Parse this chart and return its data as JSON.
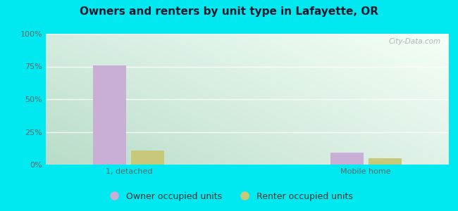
{
  "title": "Owners and renters by unit type in Lafayette, OR",
  "categories": [
    "1, detached",
    "Mobile home"
  ],
  "owner_values": [
    76,
    9
  ],
  "renter_values": [
    11,
    5
  ],
  "owner_color": "#c9aed6",
  "renter_color": "#c8c87a",
  "bar_width": 0.28,
  "ylim": [
    0,
    100
  ],
  "yticks": [
    0,
    25,
    50,
    75,
    100
  ],
  "ytick_labels": [
    "0%",
    "25%",
    "50%",
    "75%",
    "100%"
  ],
  "bg_topleft": "#d4ede0",
  "bg_topright": "#f0f8f0",
  "bg_bottomleft": "#c8e8d8",
  "bg_bottomright": "#e8f5ee",
  "outer_bg": "#00e8f0",
  "legend_owner": "Owner occupied units",
  "legend_renter": "Renter occupied units",
  "watermark": "City-Data.com",
  "title_fontsize": 11,
  "tick_fontsize": 8,
  "legend_fontsize": 9
}
